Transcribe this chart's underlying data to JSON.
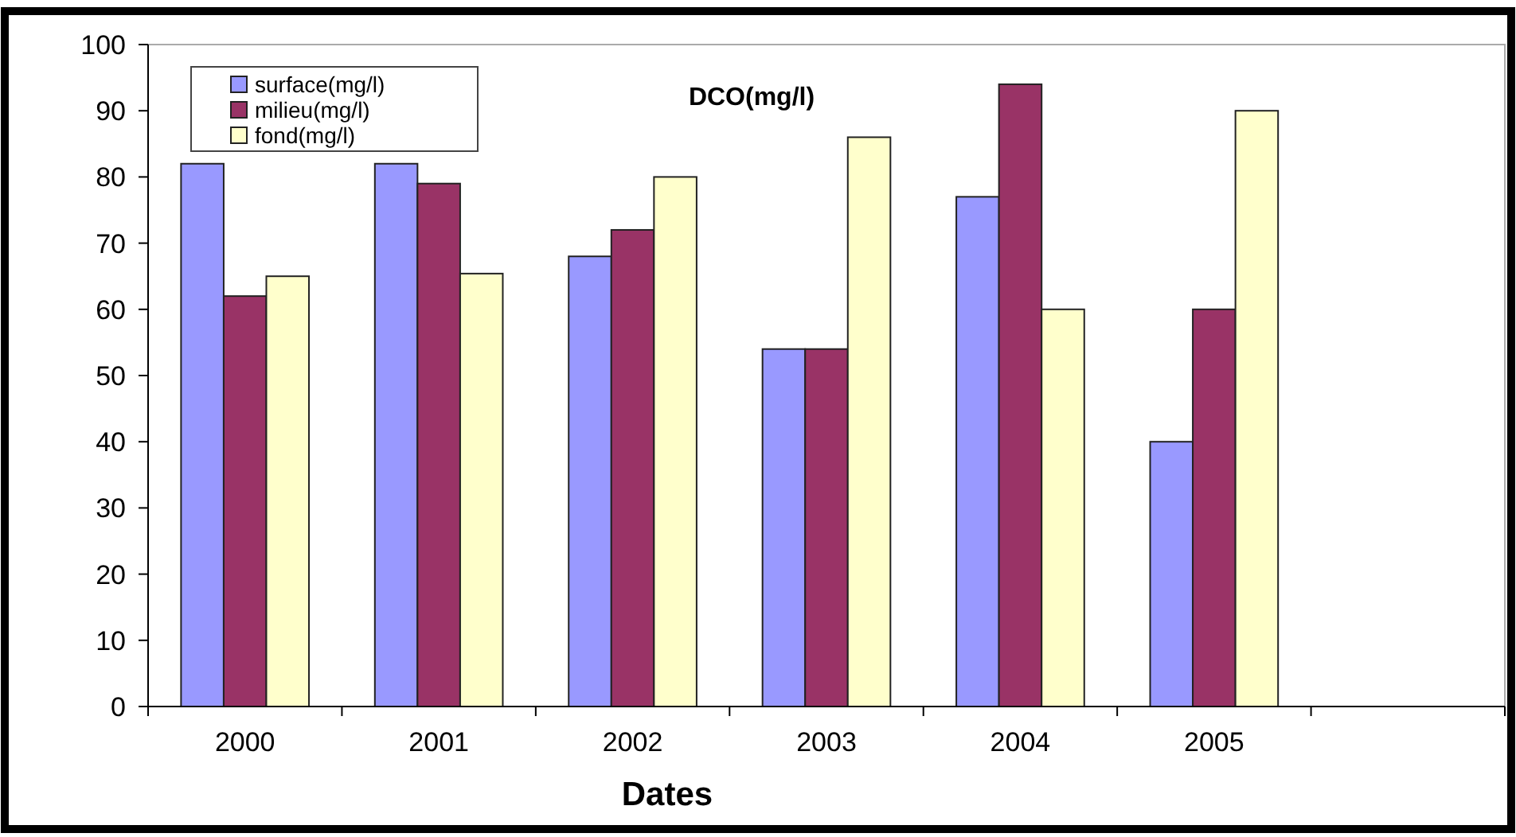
{
  "chart_data": {
    "type": "bar",
    "title": "DCO(mg/l)",
    "xlabel": "Dates",
    "categories": [
      "2000",
      "2001",
      "2002",
      "2003",
      "2004",
      "2005",
      null
    ],
    "series": [
      {
        "name": "surface(mg/l)",
        "color": "#9999ff",
        "values": [
          82,
          82,
          68,
          54,
          77,
          40,
          null
        ]
      },
      {
        "name": "milieu(mg/l)",
        "color": "#993366",
        "values": [
          62,
          79,
          72,
          54,
          94,
          60,
          null
        ]
      },
      {
        "name": "fond(mg/l)",
        "color": "#ffffcc",
        "values": [
          65,
          65.4,
          80,
          86,
          60,
          90,
          null
        ]
      }
    ],
    "ylim": [
      0,
      100
    ],
    "yticks": [
      0,
      10,
      20,
      30,
      40,
      50,
      60,
      70,
      80,
      90,
      100
    ],
    "grid": false,
    "legend": "top left"
  }
}
